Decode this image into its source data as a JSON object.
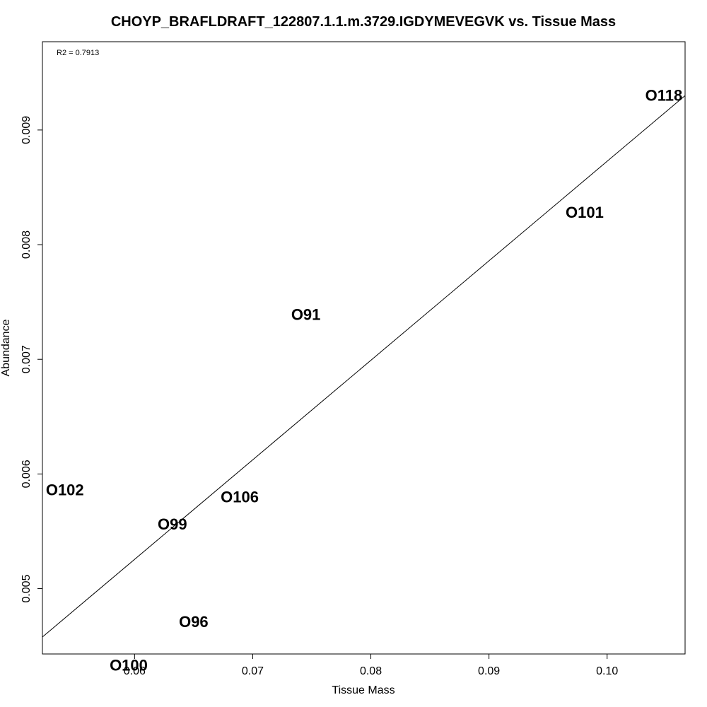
{
  "chart_data": {
    "type": "scatter",
    "title": "CHOYP_BRAFLDRAFT_122807.1.1.m.3729.IGDYMEVEGVK vs. Tissue Mass",
    "xlabel": "Tissue Mass",
    "ylabel": "Abundance",
    "annotation": "R2 = 0.7913",
    "xlim": [
      0.0522,
      0.1066
    ],
    "ylim": [
      0.00443,
      0.00977
    ],
    "xticks": [
      0.06,
      0.07,
      0.08,
      0.09,
      0.1
    ],
    "xtick_labels": [
      "0.06",
      "0.07",
      "0.08",
      "0.09",
      "0.10"
    ],
    "yticks": [
      0.005,
      0.006,
      0.007,
      0.008,
      0.009
    ],
    "ytick_labels": [
      "0.005",
      "0.006",
      "0.007",
      "0.008",
      "0.009"
    ],
    "points": [
      {
        "label": "O118",
        "x": 0.1048,
        "y": 0.0093
      },
      {
        "label": "O101",
        "x": 0.0981,
        "y": 0.00828
      },
      {
        "label": "O91",
        "x": 0.0745,
        "y": 0.00739
      },
      {
        "label": "O102",
        "x": 0.0541,
        "y": 0.00586
      },
      {
        "label": "O106",
        "x": 0.0689,
        "y": 0.0058
      },
      {
        "label": "O99",
        "x": 0.0632,
        "y": 0.00556
      },
      {
        "label": "O96",
        "x": 0.065,
        "y": 0.00471
      },
      {
        "label": "O100",
        "x": 0.0595,
        "y": 0.00433
      }
    ],
    "regression_line": {
      "x": [
        0.0522,
        0.1066
      ],
      "y": [
        0.004578,
        0.0093
      ]
    },
    "grid": false,
    "legend": "none"
  }
}
